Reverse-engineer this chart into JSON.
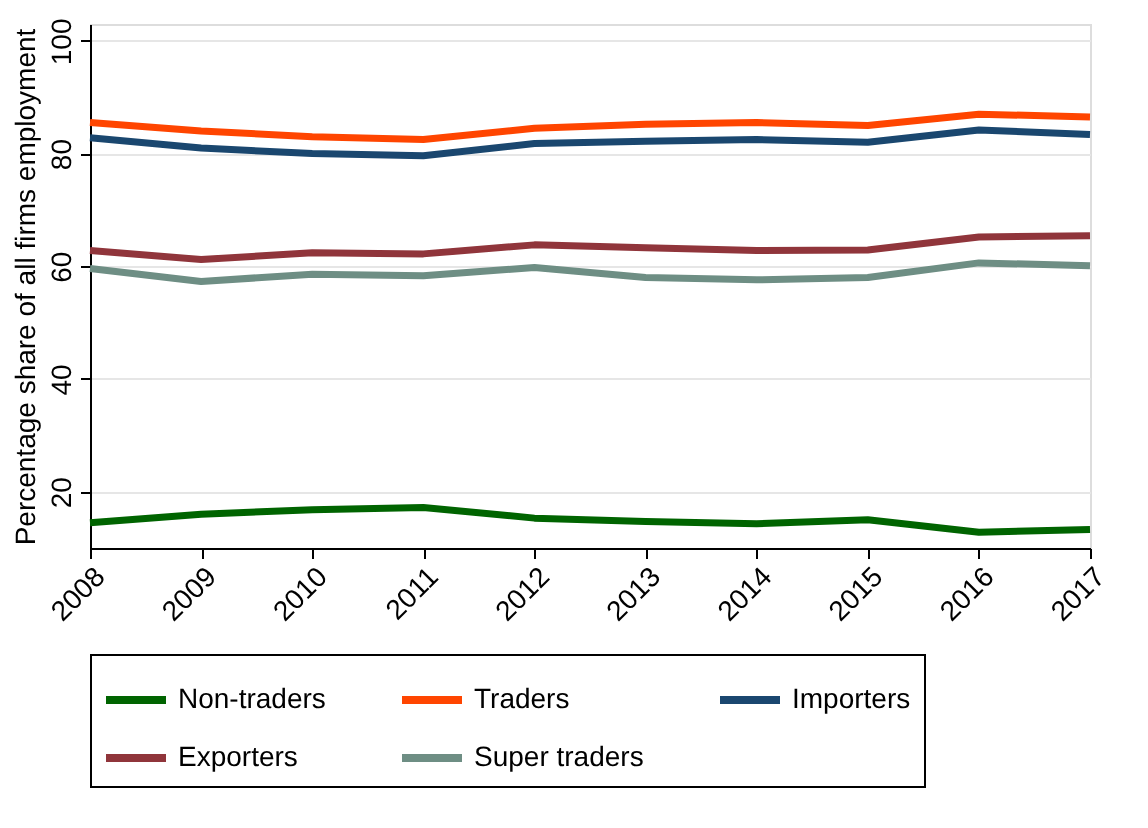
{
  "chart_data": {
    "type": "line",
    "ylabel": "Percentage share of all firms employment",
    "x": [
      2008,
      2009,
      2010,
      2011,
      2012,
      2013,
      2014,
      2015,
      2016,
      2017
    ],
    "xlim": [
      2008,
      2017
    ],
    "xticks": [
      2008,
      2009,
      2010,
      2011,
      2012,
      2013,
      2014,
      2015,
      2016,
      2017
    ],
    "ylim": [
      10,
      103
    ],
    "yticks": [
      20,
      40,
      60,
      80,
      100
    ],
    "grid": "y",
    "legend": "bottom",
    "marker": "none",
    "line_style": "solid",
    "series": [
      {
        "name": "Non-traders",
        "color": "#006400",
        "values": [
          14.5,
          16,
          16.8,
          17.2,
          15.3,
          14.7,
          14.3,
          15,
          12.8,
          13.3
        ]
      },
      {
        "name": "Traders",
        "color": "#ff4500",
        "values": [
          85.5,
          84,
          83,
          82.5,
          84.5,
          85.2,
          85.5,
          85,
          87,
          86.5
        ]
      },
      {
        "name": "Importers",
        "color": "#1a476f",
        "values": [
          82.8,
          81,
          80,
          79.6,
          81.8,
          82.2,
          82.5,
          82,
          84.2,
          83.4
        ]
      },
      {
        "name": "Exporters",
        "color": "#90353b",
        "values": [
          62.8,
          61.2,
          62.4,
          62.2,
          63.8,
          63.3,
          62.8,
          62.9,
          65.2,
          65.4
        ]
      },
      {
        "name": "Super traders",
        "color": "#6e8e84",
        "values": [
          59.6,
          57.3,
          58.6,
          58.3,
          59.8,
          58,
          57.6,
          58,
          60.6,
          60.1
        ]
      }
    ]
  }
}
